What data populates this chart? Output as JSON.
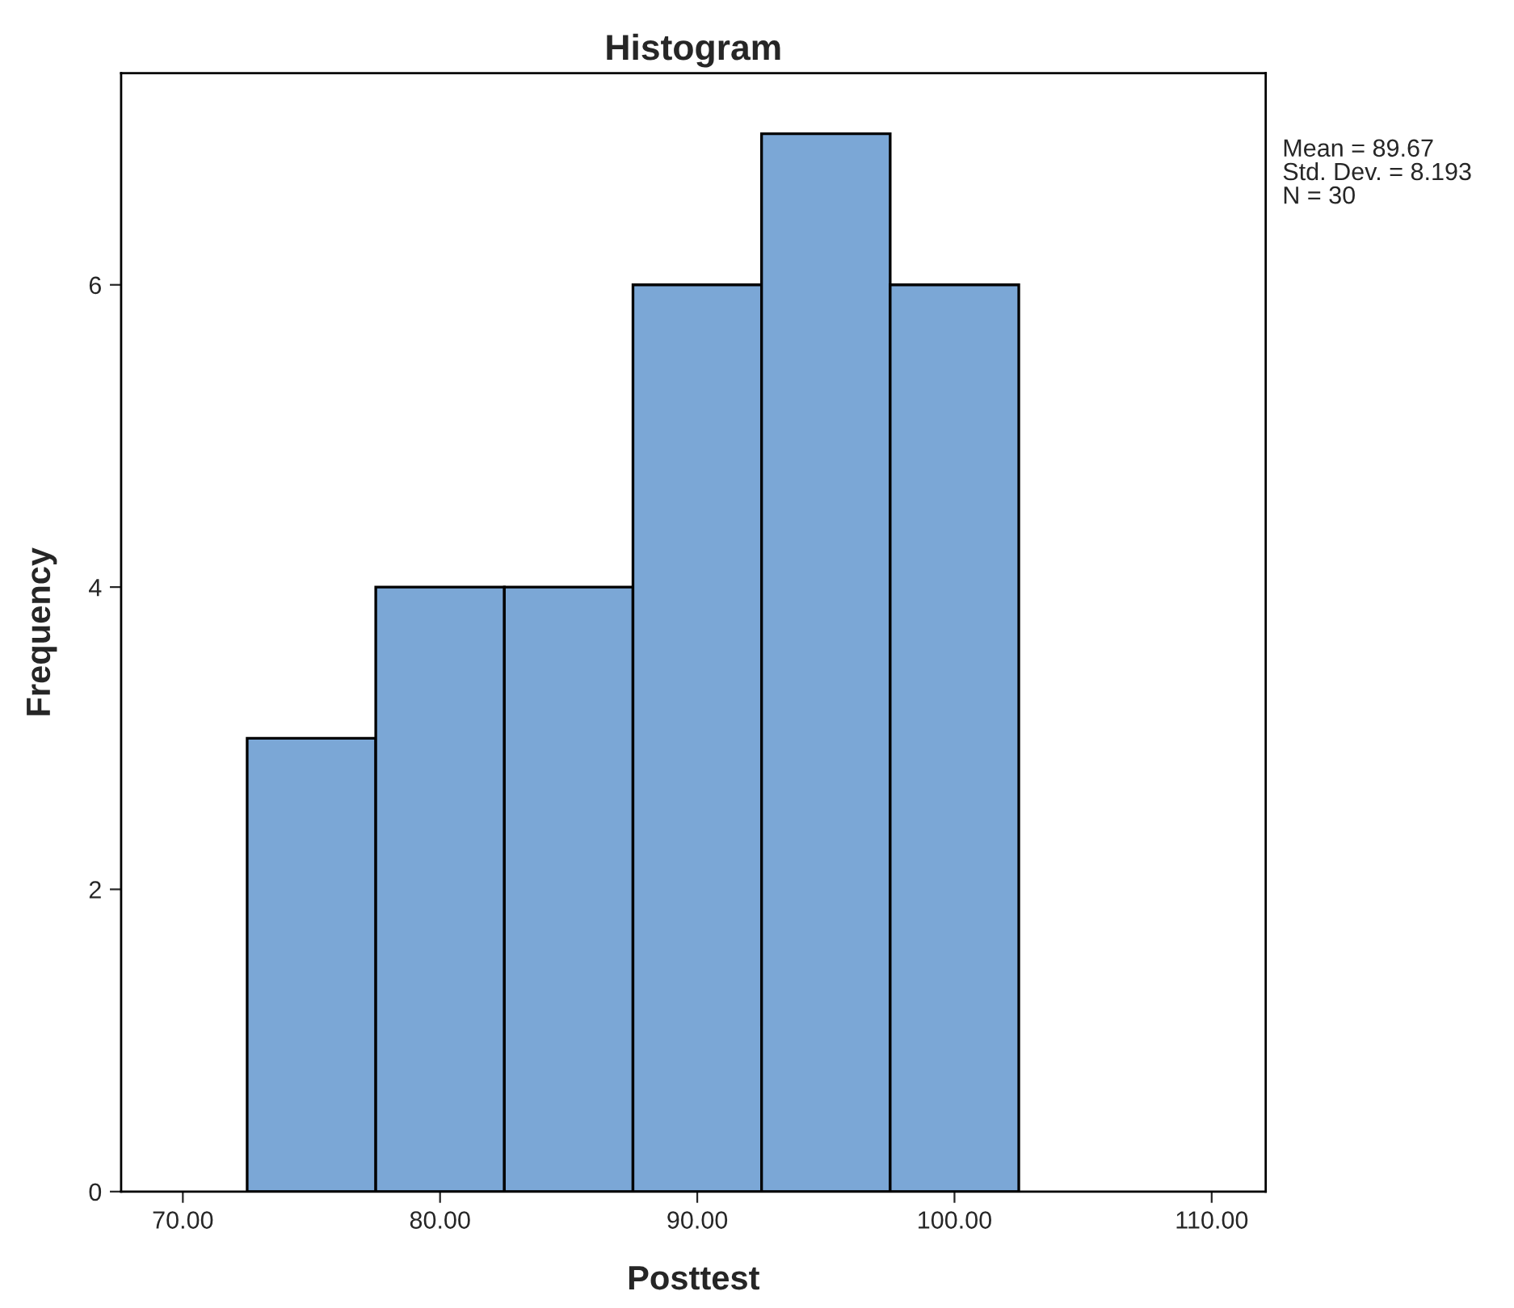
{
  "chart_data": {
    "type": "histogram",
    "title": "Histogram",
    "xlabel": "Posttest",
    "ylabel": "Frequency",
    "bins": [
      72.5,
      77.5,
      82.5,
      87.5,
      92.5,
      97.5,
      102.5
    ],
    "values": [
      3,
      4,
      4,
      6,
      7,
      6
    ],
    "color": "#7ba7d6",
    "xlim": [
      67.6,
      112.1
    ],
    "ylim": [
      0,
      7.4
    ],
    "xticks": [
      {
        "value": 70,
        "label": "70.00"
      },
      {
        "value": 80,
        "label": "80.00"
      },
      {
        "value": 90,
        "label": "90.00"
      },
      {
        "value": 100,
        "label": "100.00"
      },
      {
        "value": 110,
        "label": "110.00"
      }
    ],
    "yticks": [
      0,
      2,
      4,
      6
    ],
    "grid": false,
    "annotations": [
      "Mean = 89.67",
      "Std. Dev. = 8.193",
      "N = 30"
    ]
  }
}
